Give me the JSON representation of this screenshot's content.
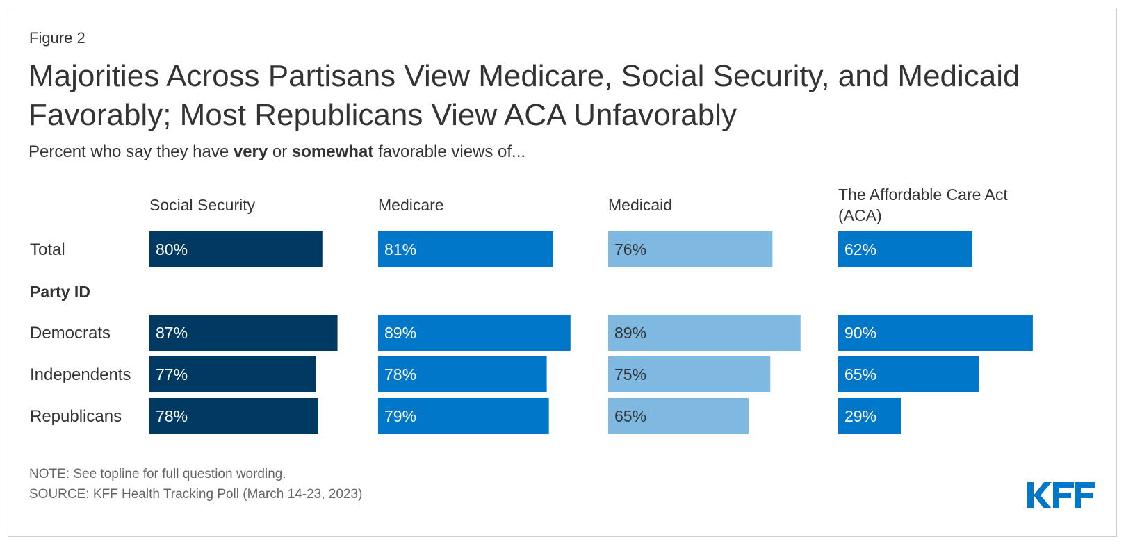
{
  "figure_label": "Figure 2",
  "title": "Majorities Across Partisans View Medicare, Social Security, and Medicaid Favorably; Most Republicans View ACA Unfavorably",
  "subtitle": {
    "prefix": "Percent who say they have ",
    "bold1": "very",
    "middle": " or ",
    "bold2": "somewhat",
    "suffix": " favorable views of..."
  },
  "note": "NOTE: See topline for full question wording.",
  "source": "SOURCE: KFF Health Tracking Poll (March 14-23, 2023)",
  "logo_text": "KFF",
  "colors": {
    "social_security": "#003a63",
    "medicare": "#0077c8",
    "medicaid": "#7fb9e1",
    "aca": "#0077c8",
    "logo": "#0077c8"
  },
  "chart_data": {
    "type": "bar",
    "orientation": "horizontal",
    "xlim": [
      0,
      100
    ],
    "group_header": "Party ID",
    "categories": [
      "Total",
      "Democrats",
      "Independents",
      "Republicans"
    ],
    "series": [
      {
        "name": "Social Security",
        "label_lines": [
          "Social Security"
        ],
        "color": "#003a63",
        "label_color": "#ffffff",
        "values": [
          80,
          87,
          77,
          78
        ]
      },
      {
        "name": "Medicare",
        "label_lines": [
          "Medicare"
        ],
        "color": "#0077c8",
        "label_color": "#ffffff",
        "values": [
          81,
          89,
          78,
          79
        ]
      },
      {
        "name": "Medicaid",
        "label_lines": [
          "Medicaid"
        ],
        "color": "#7fb9e1",
        "label_color": "#333333",
        "values": [
          76,
          89,
          75,
          65
        ]
      },
      {
        "name": "The Affordable Care Act (ACA)",
        "label_lines": [
          "The Affordable Care Act",
          "(ACA)"
        ],
        "color": "#0077c8",
        "label_color": "#ffffff",
        "values": [
          62,
          90,
          65,
          29
        ]
      }
    ]
  }
}
